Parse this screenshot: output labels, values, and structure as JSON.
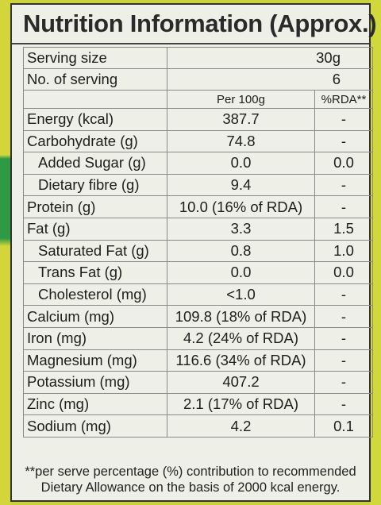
{
  "title": "Nutrition Information (Approx.)",
  "serving": {
    "size_label": "Serving size",
    "size_value": "30g",
    "count_label": "No. of serving",
    "count_value": "6"
  },
  "header": {
    "per100": "Per 100g",
    "rda": "%RDA**"
  },
  "rows": [
    {
      "name": "Energy (kcal)",
      "value": "387.7",
      "rda": "-",
      "indent": false
    },
    {
      "name": "Carbohydrate (g)",
      "value": "74.8",
      "rda": "-",
      "indent": false
    },
    {
      "name": "Added Sugar (g)",
      "value": "0.0",
      "rda": "0.0",
      "indent": true
    },
    {
      "name": "Dietary fibre (g)",
      "value": "9.4",
      "rda": "-",
      "indent": true
    },
    {
      "name": "Protein (g)",
      "value": "10.0 (16% of RDA)",
      "rda": "-",
      "indent": false
    },
    {
      "name": "Fat (g)",
      "value": "3.3",
      "rda": "1.5",
      "indent": false
    },
    {
      "name": "Saturated Fat (g)",
      "value": "0.8",
      "rda": "1.0",
      "indent": true
    },
    {
      "name": "Trans Fat (g)",
      "value": "0.0",
      "rda": "0.0",
      "indent": true
    },
    {
      "name": "Cholesterol (mg)",
      "value": "<1.0",
      "rda": "-",
      "indent": true
    },
    {
      "name": "Calcium (mg)",
      "value": "109.8 (18% of RDA)",
      "rda": "-",
      "indent": false
    },
    {
      "name": "Iron (mg)",
      "value": "4.2 (24% of RDA)",
      "rda": "-",
      "indent": false
    },
    {
      "name": "Magnesium (mg)",
      "value": "116.6 (34% of RDA)",
      "rda": "-",
      "indent": false
    },
    {
      "name": "Potassium (mg)",
      "value": "407.2",
      "rda": "-",
      "indent": false
    },
    {
      "name": "Zinc (mg)",
      "value": "2.1 (17% of RDA)",
      "rda": "-",
      "indent": false
    },
    {
      "name": "Sodium (mg)",
      "value": "4.2",
      "rda": "0.1",
      "indent": false
    }
  ],
  "footnote": {
    "line1": "**per serve percentage (%) contribution to recommended",
    "line2": "Dietary Allowance on the basis of 2000 kcal energy."
  }
}
